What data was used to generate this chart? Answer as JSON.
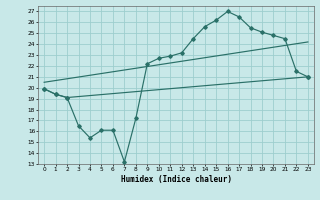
{
  "xlabel": "Humidex (Indice chaleur)",
  "xlim": [
    -0.5,
    23.5
  ],
  "ylim": [
    13,
    27.5
  ],
  "xticks": [
    0,
    1,
    2,
    3,
    4,
    5,
    6,
    7,
    8,
    9,
    10,
    11,
    12,
    13,
    14,
    15,
    16,
    17,
    18,
    19,
    20,
    21,
    22,
    23
  ],
  "yticks": [
    13,
    14,
    15,
    16,
    17,
    18,
    19,
    20,
    21,
    22,
    23,
    24,
    25,
    26,
    27
  ],
  "bg_color": "#c8e8e8",
  "grid_color": "#9ecece",
  "line_color": "#2a7068",
  "curve1_x": [
    0,
    1,
    2,
    3,
    4,
    5,
    6,
    7,
    8,
    9,
    10,
    11,
    12,
    13,
    14,
    15,
    16,
    17,
    18,
    19,
    20,
    21,
    22,
    23
  ],
  "curve1_y": [
    19.9,
    19.4,
    19.1,
    16.5,
    15.4,
    16.1,
    16.1,
    13.2,
    17.2,
    22.2,
    22.7,
    22.9,
    23.2,
    24.5,
    25.6,
    26.2,
    27.0,
    26.5,
    25.5,
    25.1,
    24.8,
    24.5,
    21.5,
    21.0
  ],
  "curve2_x": [
    0,
    1,
    2,
    23
  ],
  "curve2_y": [
    19.9,
    19.4,
    19.1,
    21.0
  ],
  "curve3_x": [
    0,
    23
  ],
  "curve3_y": [
    20.5,
    24.2
  ]
}
